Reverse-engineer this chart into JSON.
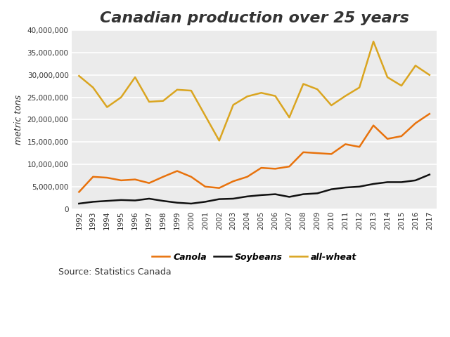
{
  "title": "Canadian production over 25 years",
  "ylabel": "metric tons",
  "source_text": "Source: Statistics Canada",
  "years": [
    1992,
    1993,
    1994,
    1995,
    1996,
    1997,
    1998,
    1999,
    2000,
    2001,
    2002,
    2003,
    2004,
    2005,
    2006,
    2007,
    2008,
    2009,
    2010,
    2011,
    2012,
    2013,
    2014,
    2015,
    2016,
    2017
  ],
  "canola": [
    3800000,
    7200000,
    7000000,
    6400000,
    6600000,
    5800000,
    7200000,
    8500000,
    7200000,
    5000000,
    4700000,
    6200000,
    7200000,
    9200000,
    9000000,
    9500000,
    12700000,
    12500000,
    12300000,
    14500000,
    13900000,
    18700000,
    15700000,
    16300000,
    19200000,
    21300000
  ],
  "soybeans": [
    1200000,
    1600000,
    1800000,
    2000000,
    1900000,
    2300000,
    1800000,
    1400000,
    1200000,
    1600000,
    2200000,
    2300000,
    2800000,
    3100000,
    3300000,
    2700000,
    3300000,
    3500000,
    4400000,
    4800000,
    5000000,
    5600000,
    6000000,
    6000000,
    6400000,
    7700000
  ],
  "all_wheat": [
    29800000,
    27200000,
    22800000,
    25000000,
    29500000,
    24000000,
    24200000,
    26700000,
    26500000,
    20900000,
    15300000,
    23300000,
    25200000,
    26000000,
    25300000,
    20500000,
    28000000,
    26800000,
    23200000,
    25300000,
    27200000,
    37500000,
    29500000,
    27600000,
    32100000,
    30000000
  ],
  "canola_color": "#E8720C",
  "soybeans_color": "#111111",
  "wheat_color": "#DAA520",
  "ylim": [
    0,
    40000000
  ],
  "yticks": [
    0,
    5000000,
    10000000,
    15000000,
    20000000,
    25000000,
    30000000,
    35000000,
    40000000
  ],
  "background_color": "#ffffff",
  "plot_bg_color": "#ebebeb",
  "title_fontsize": 16,
  "legend_fontsize": 9,
  "source_fontsize": 9,
  "ylabel_fontsize": 9,
  "line_width": 1.8,
  "grid_color": "#ffffff",
  "grid_linewidth": 1.2
}
